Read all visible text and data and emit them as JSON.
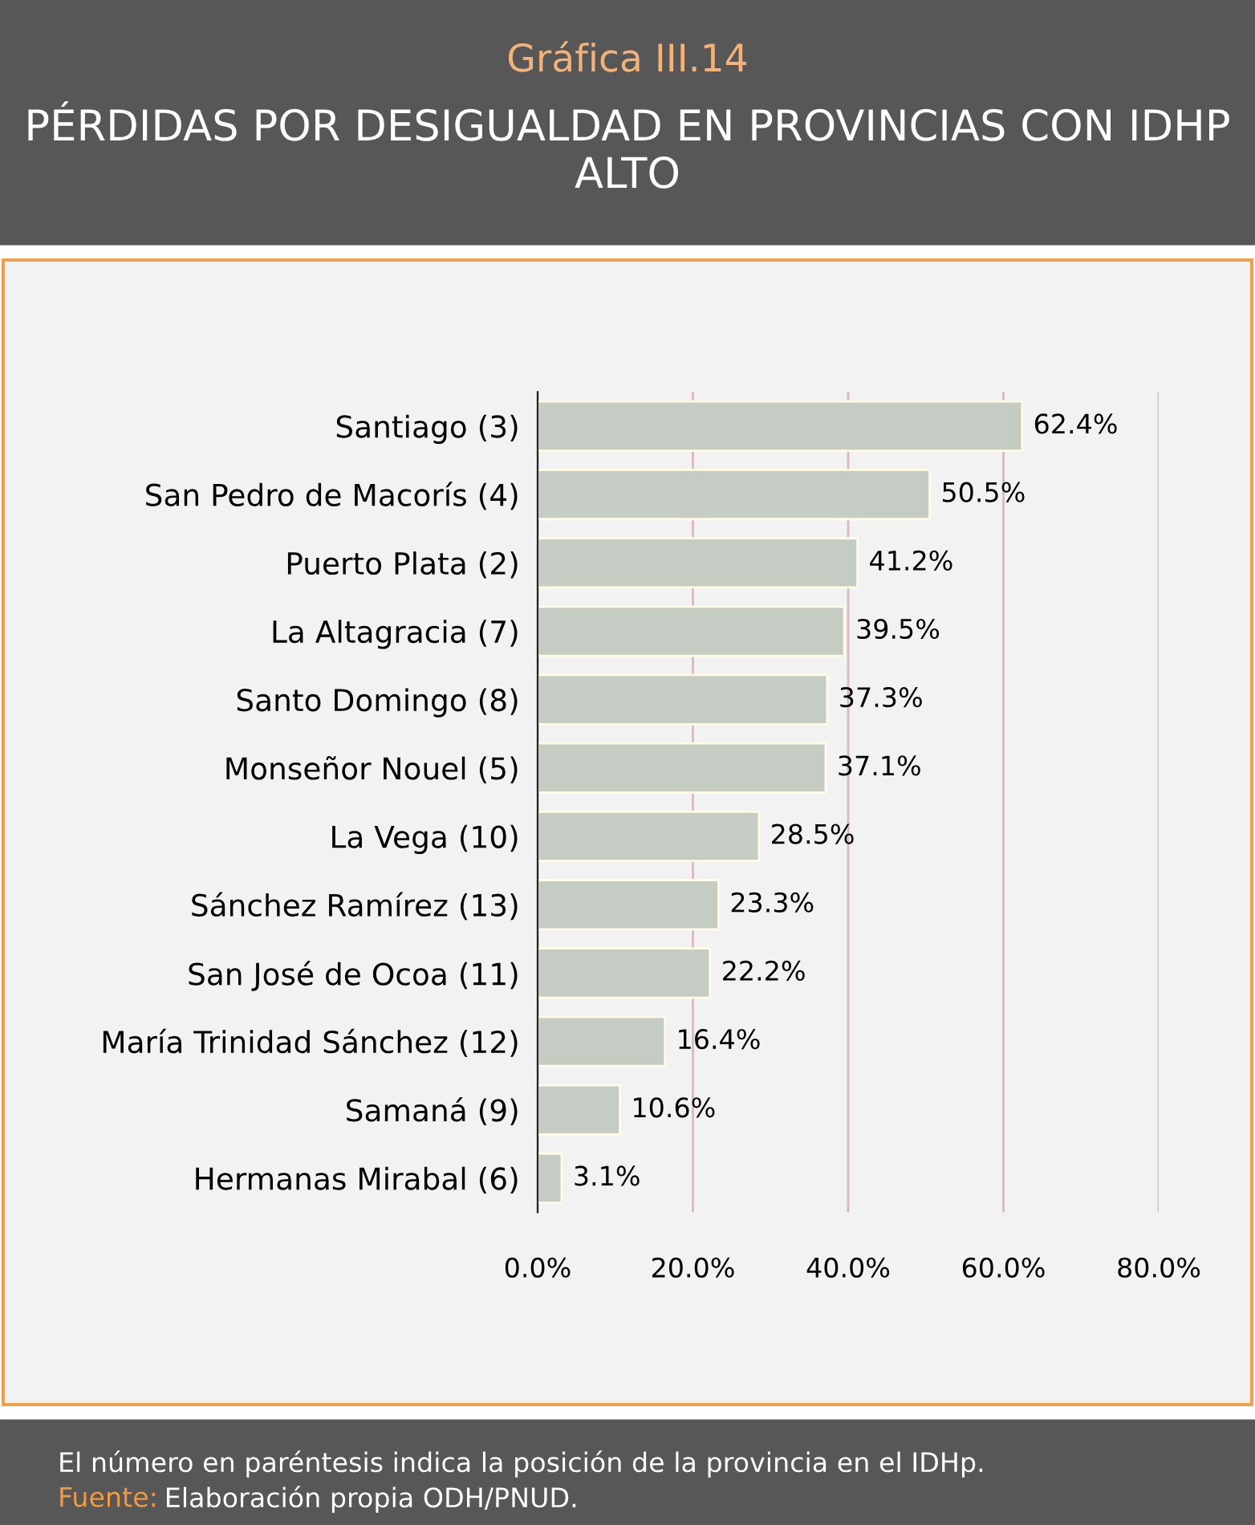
{
  "chart_data": {
    "type": "bar",
    "orientation": "horizontal",
    "subtitle": "Gráfica III.14",
    "title": "PÉRDIDAS POR DESIGUALDAD EN PROVINCIAS CON IDHP ALTO",
    "categories": [
      "Santiago (3)",
      "San Pedro de Macorís (4)",
      "Puerto Plata (2)",
      "La Altagracia (7)",
      "Santo Domingo (8)",
      "Monseñor Nouel (5)",
      "La Vega (10)",
      "Sánchez Ramírez (13)",
      "San José de Ocoa (11)",
      "María Trinidad Sánchez (12)",
      "Samaná (9)",
      "Hermanas Mirabal (6)"
    ],
    "values": [
      62.4,
      50.5,
      41.2,
      39.5,
      37.3,
      37.1,
      28.5,
      23.3,
      22.2,
      16.4,
      10.6,
      3.1
    ],
    "value_labels": [
      "62.4%",
      "50.5%",
      "41.2%",
      "39.5%",
      "37.3%",
      "37.1%",
      "28.5%",
      "23.3%",
      "22.2%",
      "16.4%",
      "10.6%",
      "3.1%"
    ],
    "color": "#c4ccc3",
    "xlim": [
      0,
      80
    ],
    "xticks": [
      {
        "value": 0,
        "label": "0.0%"
      },
      {
        "value": 20,
        "label": "20.0%"
      },
      {
        "value": 40,
        "label": "40.0%"
      },
      {
        "value": 60,
        "label": "60.0%"
      },
      {
        "value": 80,
        "label": "80.0%"
      }
    ],
    "grid": "x",
    "legend": false,
    "annotations": [
      "El número en paréntesis indica la posición de la provincia en el IDHp.",
      "Fuente: Elaboración propia ODH/PNUD."
    ]
  }
}
